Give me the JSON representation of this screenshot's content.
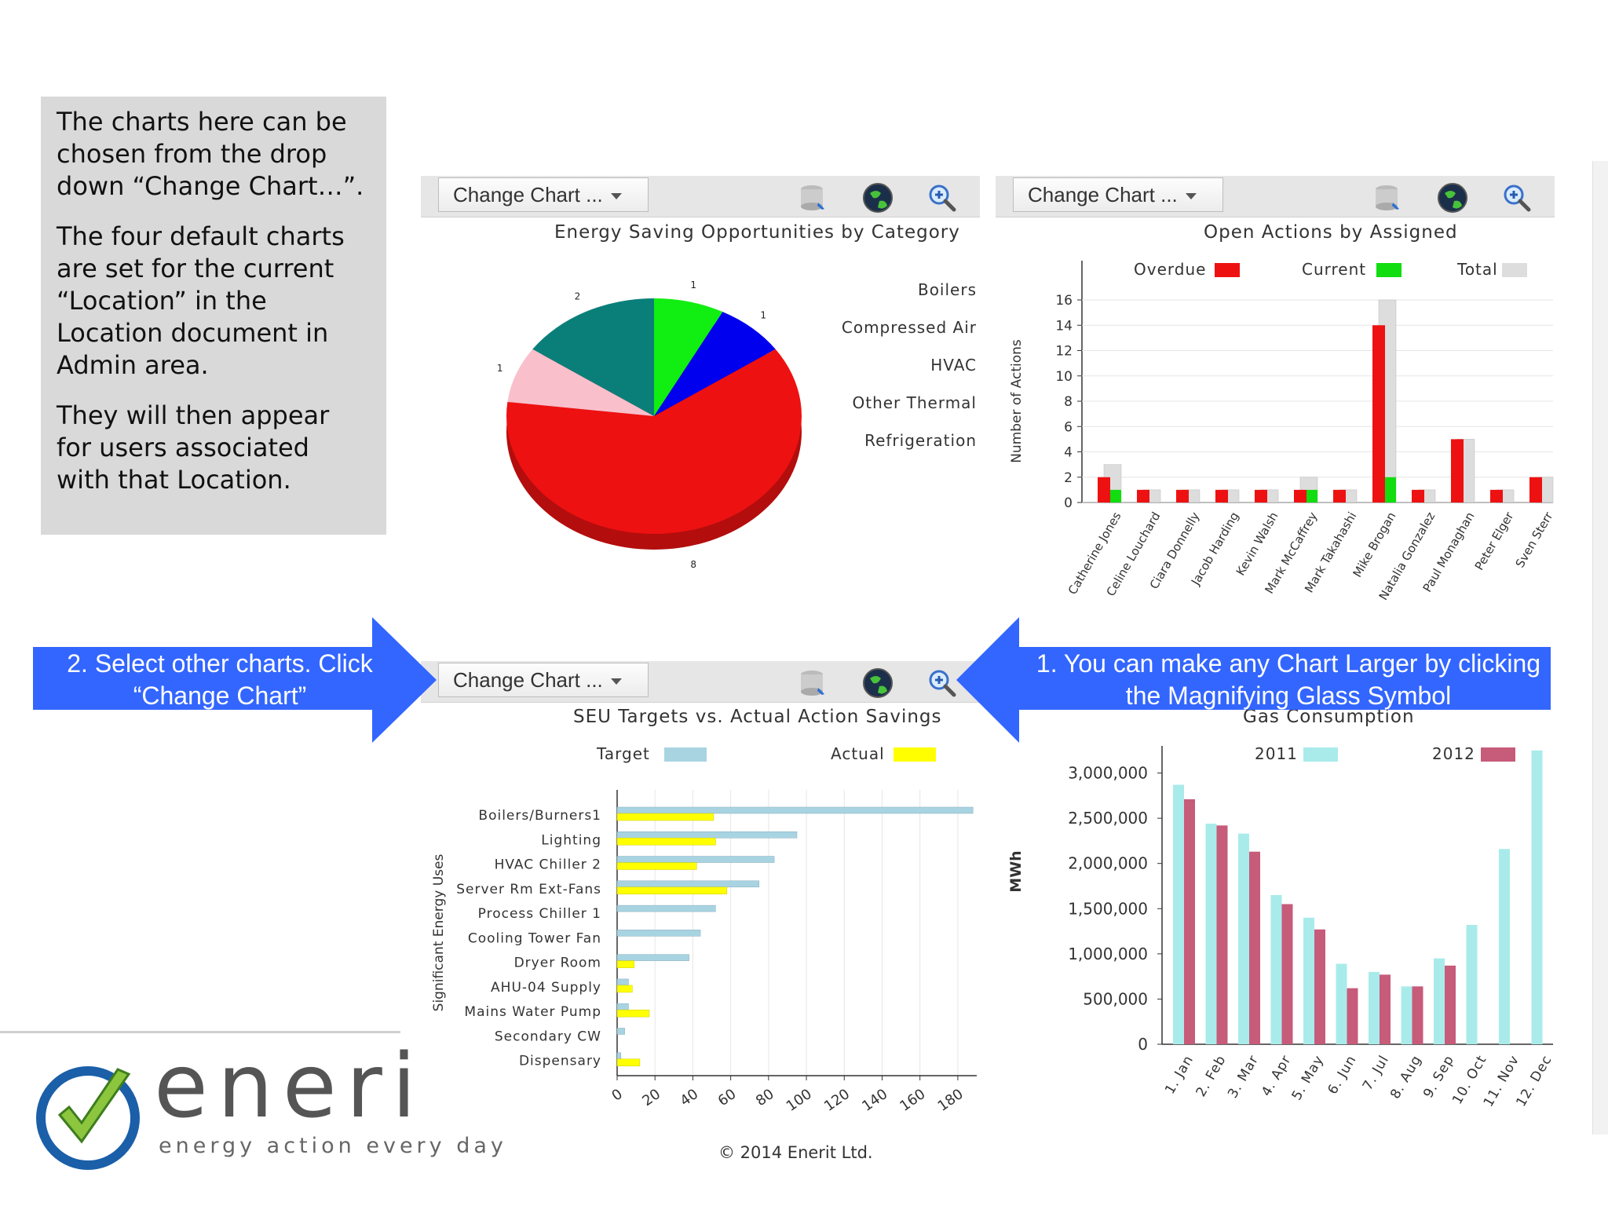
{
  "info_text": {
    "p1": "The charts here can be chosen from the drop down “Change Chart…”.",
    "p2": "The four default charts are set for the current “Location” in the Location document in Admin area.",
    "p3": "They will then appear for users associated with that Location."
  },
  "callouts": {
    "left": "2. Select other charts. Click “Change Chart”",
    "right": "1. You can make any Chart Larger by clicking the Magnifying Glass Symbol"
  },
  "toolbar": {
    "change_chart_label": "Change Chart ...",
    "icons": [
      "database-export-icon",
      "globe-icon",
      "magnifier-icon"
    ]
  },
  "logo": {
    "word": "eneri",
    "tagline": "energy action every day"
  },
  "copyright": "© 2014 Enerit Ltd.",
  "colors": {
    "overdue": "#ee1111",
    "current": "#11dd11",
    "total": "#dddddd",
    "target": "#a8d4e2",
    "actual": "#ffff00",
    "y2011": "#a9ebeb",
    "y2012": "#c75b7a",
    "callout": "#3366ff"
  },
  "chart_data": [
    {
      "type": "pie",
      "title": "Energy Saving Opportunities by Category",
      "legend_position": "right",
      "categories": [
        "Boilers",
        "Compressed Air",
        "HVAC",
        "Other Thermal",
        "Refrigeration"
      ],
      "values": [
        1,
        1,
        8,
        1,
        2
      ],
      "slice_labels": [
        "1",
        "1",
        "8",
        "1",
        "2"
      ],
      "colors": [
        "#11ee11",
        "#0000ee",
        "#ee1111",
        "#f9bfcb",
        "#0a7f7a"
      ]
    },
    {
      "type": "bar",
      "title": "Open Actions by Assigned",
      "ylabel": "Number of Actions",
      "ylim": [
        0,
        16
      ],
      "yticks": [
        "0",
        "2",
        "4",
        "6",
        "8",
        "10",
        "12",
        "14",
        "16"
      ],
      "legend_position": "top",
      "categories": [
        "Catherine Jones",
        "Celine Louchard",
        "Ciara Donnelly",
        "Jacob Harding",
        "Kevin Walsh",
        "Mark McCaffrey",
        "Mark Takahashi",
        "Mike Brogan",
        "Natalia Gonzalez",
        "Paul Monaghan",
        "Peter Elger",
        "Sven Sterr"
      ],
      "series": [
        {
          "name": "Overdue",
          "values": [
            2,
            1,
            1,
            1,
            1,
            1,
            1,
            14,
            1,
            5,
            1,
            2
          ]
        },
        {
          "name": "Current",
          "values": [
            1,
            0,
            0,
            0,
            0,
            1,
            0,
            2,
            0,
            0,
            0,
            0
          ]
        },
        {
          "name": "Total",
          "values": [
            3,
            1,
            1,
            1,
            1,
            2,
            1,
            16,
            1,
            5,
            1,
            2
          ]
        }
      ]
    },
    {
      "type": "bar",
      "orientation": "horizontal",
      "title": "SEU Targets vs. Actual Action Savings",
      "ylabel": "Significant Energy Uses",
      "xlim": [
        0,
        190
      ],
      "xticks": [
        "0",
        "20",
        "40",
        "60",
        "80",
        "100",
        "120",
        "140",
        "160",
        "180"
      ],
      "legend_position": "top",
      "categories": [
        "Boilers/Burners1",
        "Lighting",
        "HVAC Chiller 2",
        "Server Rm Ext-Fans",
        "Process Chiller 1",
        "Cooling Tower Fan",
        "Dryer Room",
        "AHU-04 Supply",
        "Mains Water Pump",
        "Secondary CW",
        "Dispensary"
      ],
      "series": [
        {
          "name": "Target",
          "values": [
            188,
            95,
            83,
            75,
            52,
            44,
            38,
            6,
            6,
            4,
            2
          ]
        },
        {
          "name": "Actual",
          "values": [
            51,
            52,
            42,
            58,
            0,
            0,
            9,
            8,
            17,
            0,
            12
          ]
        }
      ]
    },
    {
      "type": "bar",
      "title": "Gas Consumption",
      "ylabel": "MWh",
      "ylim": [
        0,
        3300000
      ],
      "yticks": [
        "0",
        "500,000",
        "1,000,000",
        "1,500,000",
        "2,000,000",
        "2,500,000",
        "3,000,000"
      ],
      "legend_position": "top",
      "categories": [
        "1. Jan",
        "2. Feb",
        "3. Mar",
        "4. Apr",
        "5. May",
        "6. Jun",
        "7. Jul",
        "8. Aug",
        "9. Sep",
        "10. Oct",
        "11. Nov",
        "12. Dec"
      ],
      "series": [
        {
          "name": "2011",
          "values": [
            2870000,
            2440000,
            2330000,
            1650000,
            1400000,
            890000,
            800000,
            640000,
            950000,
            1320000,
            2160000,
            3250000
          ]
        },
        {
          "name": "2012",
          "values": [
            2710000,
            2420000,
            2130000,
            1550000,
            1270000,
            620000,
            770000,
            640000,
            870000,
            0,
            0,
            0
          ]
        }
      ]
    }
  ]
}
